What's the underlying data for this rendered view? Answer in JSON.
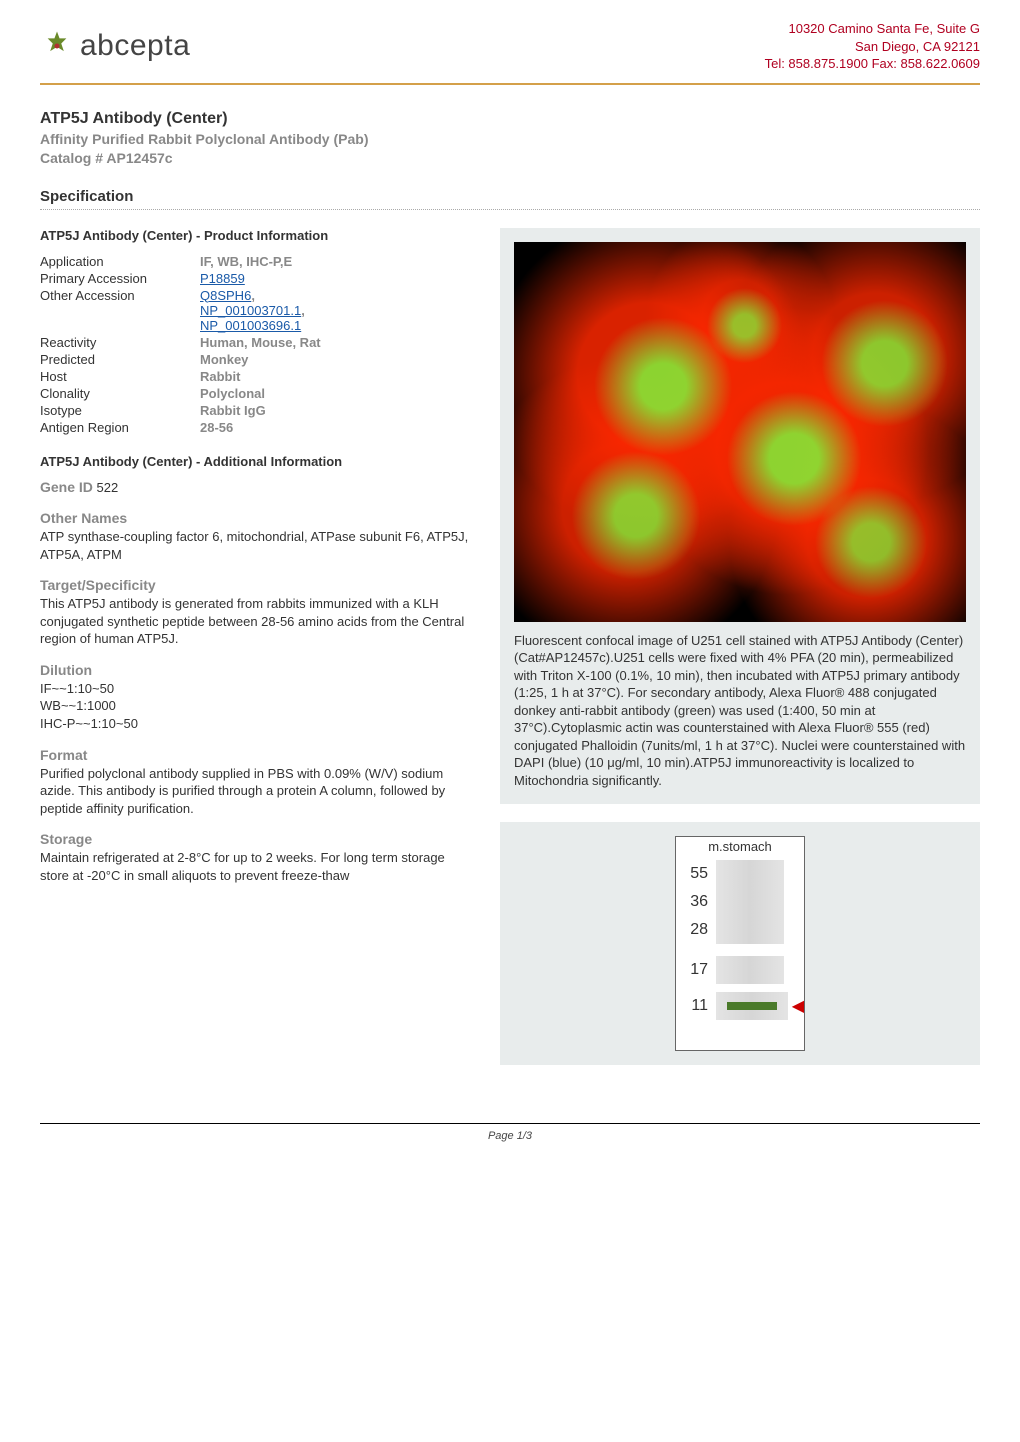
{
  "company": {
    "logo_text": "abcepta",
    "address_line1": "10320 Camino Santa Fe, Suite G",
    "address_line2": "San Diego, CA 92121",
    "address_line3": "Tel: 858.875.1900 Fax: 858.622.0609",
    "address_color": "#b00020"
  },
  "product": {
    "title": "ATP5J Antibody (Center)",
    "subtitle": "Affinity Purified Rabbit Polyclonal Antibody (Pab)",
    "catalog": "Catalog # AP12457c"
  },
  "section_spec": "Specification",
  "blocks": {
    "prodinfo_hdr": "ATP5J Antibody (Center) - Product Information",
    "addlinfo_hdr": "ATP5J Antibody (Center) - Additional Information"
  },
  "kv": {
    "application_k": "Application",
    "application_v": "IF, WB, IHC-P,E",
    "primary_acc_k": "Primary Accession",
    "primary_acc_v": "P18859",
    "other_acc_k": "Other Accession",
    "other_acc_v1": "Q8SPH6",
    "other_acc_sep": ", ",
    "other_acc_v2": "NP_001003701.1",
    "other_acc_v3": "NP_001003696.1",
    "reactivity_k": "Reactivity",
    "reactivity_v": "Human, Mouse, Rat",
    "predicted_k": "Predicted",
    "predicted_v": "Monkey",
    "host_k": "Host",
    "host_v": "Rabbit",
    "clonality_k": "Clonality",
    "clonality_v": "Polyclonal",
    "isotype_k": "Isotype",
    "isotype_v": "Rabbit IgG",
    "antigen_k": "Antigen Region",
    "antigen_v": "28-56"
  },
  "info": {
    "gene_id_lbl": "Gene ID",
    "gene_id_val": " 522",
    "other_names_lbl": "Other Names",
    "other_names_val": "ATP synthase-coupling factor 6, mitochondrial, ATPase subunit F6, ATP5J, ATP5A, ATPM",
    "target_lbl": "Target/Specificity",
    "target_val": "This ATP5J antibody is generated from rabbits immunized with a KLH conjugated synthetic peptide between 28-56 amino acids from the Central region of human ATP5J.",
    "dilution_lbl": "Dilution",
    "dilution_v1": "IF~~1:10~50",
    "dilution_v2": "WB~~1:1000",
    "dilution_v3": "IHC-P~~1:10~50",
    "format_lbl": "Format",
    "format_val": "Purified polyclonal antibody supplied in PBS with 0.09% (W/V) sodium azide. This antibody is purified through a protein A column, followed by peptide affinity purification.",
    "storage_lbl": "Storage",
    "storage_val": "Maintain refrigerated at 2-8°C for up to 2 weeks. For long term storage store at -20°C in small aliquots to prevent freeze-thaw"
  },
  "fig1": {
    "caption": " Fluorescent confocal image of U251 cell stained with ATP5J Antibody (Center)(Cat#AP12457c).U251 cells were fixed with 4% PFA (20 min), permeabilized with Triton X-100 (0.1%, 10 min), then incubated with ATP5J primary antibody (1:25, 1 h at 37°C). For secondary antibody, Alexa Fluor® 488 conjugated donkey anti-rabbit antibody (green) was used (1:400, 50 min at 37°C).Cytoplasmic actin was counterstained with Alexa Fluor® 555 (red) conjugated Phalloidin (7units/ml, 1 h at 37°C). Nuclei were counterstained with DAPI (blue) (10 μg/ml, 10 min).ATP5J immunoreactivity is localized to Mitochondria significantly."
  },
  "fig2": {
    "lane_header": "m.stomach",
    "markers": [
      "55",
      "36",
      "28",
      "17",
      "11"
    ],
    "band_marker_index": 4,
    "band_color": "#4a7a2a",
    "arrow_color": "#c00",
    "border_color": "#666666",
    "bg": "#ffffff"
  },
  "footer": {
    "text": "Page 1/3"
  },
  "style": {
    "grey_text": "#888888",
    "link_color": "#1a5aa8",
    "accent_border": "#d4a04a",
    "panel_bg": "#e8ecec"
  }
}
